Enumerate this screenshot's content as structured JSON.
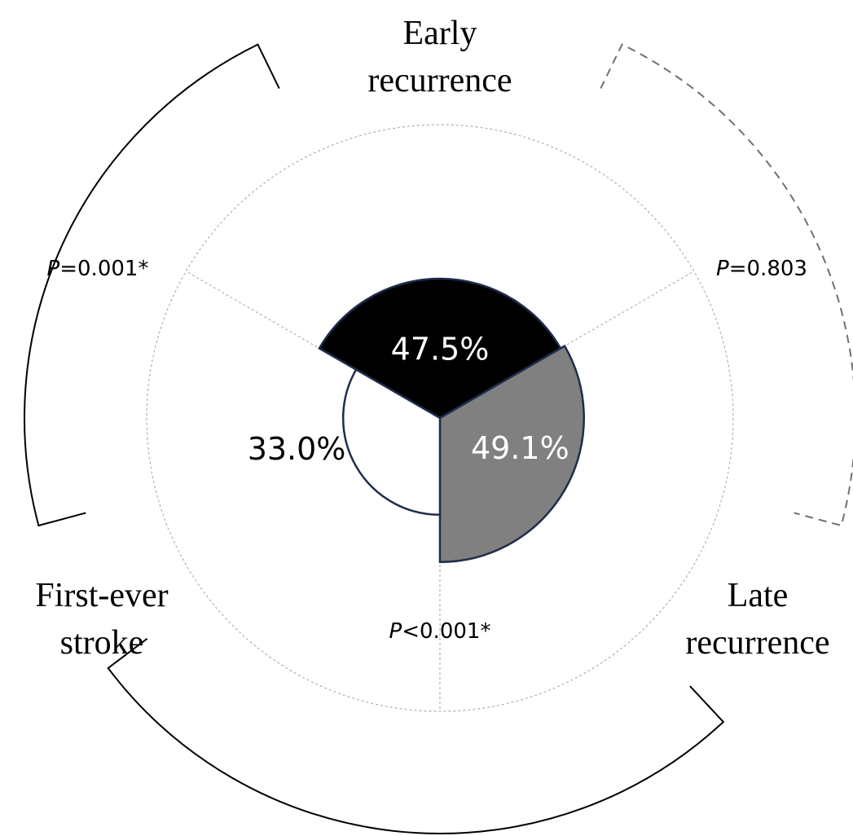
{
  "chart_data": {
    "type": "polar_area",
    "categories": [
      "Early recurrence",
      "Late recurrence",
      "First-ever stroke"
    ],
    "values": [
      47.5,
      49.1,
      33.0
    ],
    "value_labels": [
      "47.5%",
      "49.1%",
      "33.0%"
    ],
    "colors": [
      "#000000",
      "#808080",
      "#ffffff"
    ],
    "label_colors": [
      "#ffffff",
      "#ffffff",
      "#000000"
    ],
    "rlim": [
      0,
      100
    ],
    "annotations": [
      {
        "symbol": "P",
        "text": "=0.001*"
      },
      {
        "symbol": "P",
        "text": "=0.803"
      },
      {
        "symbol": "P",
        "text": "<0.001*"
      }
    ]
  }
}
